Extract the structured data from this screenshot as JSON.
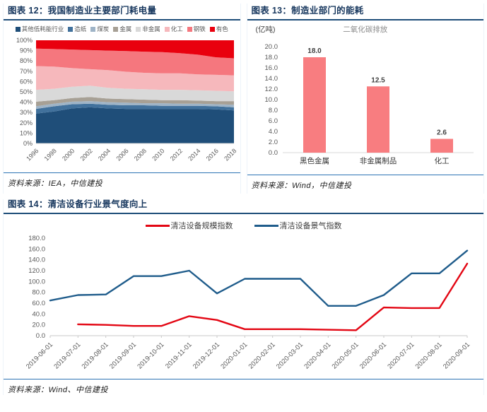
{
  "chart_data": [
    {
      "id": "electricity-mix",
      "type": "area",
      "stacked": true,
      "percent": true,
      "header": "图表 12：我国制造业主要部门耗电量",
      "source": "资料来源：IEA，中信建投",
      "categories": [
        "1996",
        "1998",
        "2000",
        "2002",
        "2004",
        "2006",
        "2008",
        "2010",
        "2012",
        "2014",
        "2016",
        "2018"
      ],
      "series": [
        {
          "name": "其他低耗能行业",
          "color": "#1f4e79",
          "values": [
            29,
            31,
            34,
            35,
            34,
            33.5,
            33.5,
            33.5,
            33.5,
            33.5,
            33,
            32
          ]
        },
        {
          "name": "造纸",
          "color": "#41719c",
          "values": [
            4.5,
            5,
            4,
            3.5,
            3.5,
            3.5,
            3.5,
            3,
            3,
            3,
            3,
            3
          ]
        },
        {
          "name": "煤炭",
          "color": "#9fb4c7",
          "values": [
            2.5,
            2.5,
            2.5,
            2.5,
            2.5,
            2.5,
            2,
            2.5,
            2,
            2,
            2,
            2.5
          ]
        },
        {
          "name": "金属",
          "color": "#a7a095",
          "values": [
            4.5,
            3.5,
            3.5,
            4,
            3.5,
            3.5,
            3.5,
            3,
            3.5,
            3,
            3,
            3.5
          ]
        },
        {
          "name": "非金属",
          "color": "#d9d9d9",
          "values": [
            11.5,
            11,
            11,
            11,
            10.5,
            10,
            10,
            10,
            10,
            10,
            10,
            9.5
          ]
        },
        {
          "name": "化工",
          "color": "#f6b8bc",
          "values": [
            23,
            21.5,
            18,
            16,
            17,
            16.5,
            16,
            16,
            16,
            15.5,
            15.5,
            15.5
          ]
        },
        {
          "name": "钢铁",
          "color": "#f5777e",
          "values": [
            17,
            17,
            18,
            18.5,
            19,
            20,
            20.5,
            20.5,
            19.5,
            19,
            17,
            16.5
          ]
        },
        {
          "name": "有色",
          "color": "#e9000e",
          "values": [
            8,
            8.5,
            9,
            9.5,
            10,
            10.5,
            11,
            11.5,
            12.5,
            14,
            16.5,
            17.5
          ]
        }
      ],
      "ylim": [
        0,
        100
      ],
      "ytick_step": 10,
      "legend_position": "top",
      "grid": false
    },
    {
      "id": "co2-emissions",
      "type": "bar",
      "header": "图表 13：制造业部门的能耗",
      "title": "二氧化碳排放",
      "unit": "(亿吨)",
      "source": "资料来源：Wind，中信建投",
      "categories": [
        "黑色金属",
        "非金属制品",
        "化工"
      ],
      "values": [
        18.0,
        12.5,
        2.6
      ],
      "value_labels": [
        "18.0",
        "12.5",
        "2.6"
      ],
      "bar_color": "#f87d80",
      "ylim": [
        0,
        20
      ],
      "ytick_step": 2,
      "grid": false
    },
    {
      "id": "clean-equipment-index",
      "type": "line",
      "header": "图表 14：清洁设备行业景气度向上",
      "source": "资料来源：Wind、中信建投",
      "categories": [
        "2019-06-01",
        "2019-07-01",
        "2019-08-01",
        "2019-09-01",
        "2019-10-01",
        "2019-11-01",
        "2019-12-01",
        "2020-01-01",
        "2020-02-01",
        "2020-03-01",
        "2020-04-01",
        "2020-05-01",
        "2020-06-01",
        "2020-07-01",
        "2020-08-01",
        "2020-09-01"
      ],
      "series": [
        {
          "name": "清洁设备规模指数",
          "color": "#e30613",
          "values": [
            null,
            21,
            20,
            18,
            18,
            36,
            29,
            12,
            12,
            12,
            11,
            10,
            52,
            51,
            51,
            133
          ]
        },
        {
          "name": "清洁设备景气指数",
          "color": "#1f5c8b",
          "values": [
            65,
            75,
            76,
            110,
            110,
            120,
            78,
            105,
            105,
            105,
            55,
            55,
            75,
            115,
            115,
            157
          ]
        }
      ],
      "ylim": [
        0,
        180
      ],
      "ytick_step": 20,
      "legend_position": "top",
      "grid": false
    }
  ],
  "colors": {
    "header_text": "#17375e",
    "header_rule": "#1f4e79",
    "source_rule": "#2e74b5",
    "axis_text": "#595959"
  }
}
